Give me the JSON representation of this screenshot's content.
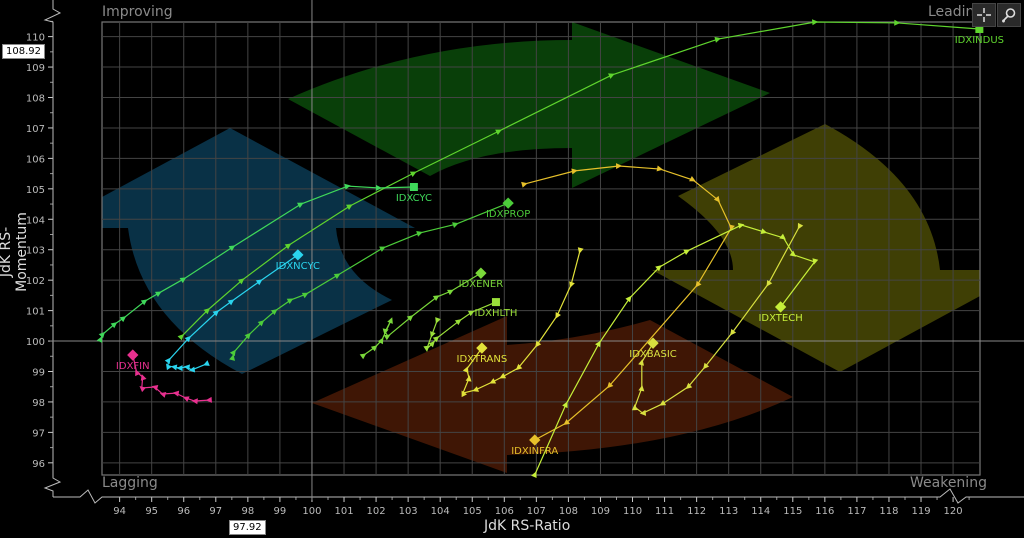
{
  "toolbar": {
    "crosshair_icon": "crosshair-icon",
    "zoom_icon": "zoom-in-icon"
  },
  "quadrants": {
    "top_left": "Improving",
    "top_right": "Leading",
    "bottom_left": "Lagging",
    "bottom_right": "Weakening"
  },
  "cursor_readout": {
    "y_value": "108.92",
    "x_value": "97.92"
  },
  "chart_data": {
    "type": "scatter",
    "subtype": "relative-rotation-graph",
    "xlabel": "JdK RS-Ratio",
    "ylabel": "JdK RS-Momentum",
    "xlim": [
      93.45,
      120.84
    ],
    "ylim": [
      95.6,
      110.48
    ],
    "x_ticks": [
      94,
      95,
      96,
      97,
      98,
      99,
      100,
      101,
      102,
      103,
      104,
      105,
      106,
      107,
      108,
      109,
      110,
      111,
      112,
      113,
      114,
      115,
      116,
      117,
      118,
      119,
      120
    ],
    "y_ticks": [
      96,
      97,
      98,
      99,
      100,
      101,
      102,
      103,
      104,
      105,
      106,
      107,
      108,
      109,
      110
    ],
    "grid": true,
    "center": [
      100,
      100
    ],
    "quadrant_colors": {
      "improving": "#0a3a52",
      "leading": "#0b4a0b",
      "weakening": "#4a4a06",
      "lagging": "#4a1a06"
    },
    "series": [
      {
        "name": "IDXINDUS",
        "color": "#5fd42e",
        "head": "square",
        "points": [
          [
            95.94,
            100.16
          ],
          [
            96.75,
            101.02
          ],
          [
            97.82,
            102.0
          ],
          [
            99.28,
            103.15
          ],
          [
            101.19,
            104.44
          ],
          [
            103.18,
            105.52
          ],
          [
            105.84,
            106.9
          ],
          [
            109.36,
            108.74
          ],
          [
            112.67,
            109.92
          ],
          [
            115.7,
            110.48
          ],
          [
            118.26,
            110.45
          ],
          [
            120.82,
            110.25
          ]
        ]
      },
      {
        "name": "IDXCYC",
        "color": "#3fd85a",
        "head": "square",
        "points": [
          [
            93.41,
            100.07
          ],
          [
            93.48,
            100.23
          ],
          [
            93.85,
            100.56
          ],
          [
            94.13,
            100.76
          ],
          [
            94.79,
            101.31
          ],
          [
            95.23,
            101.58
          ],
          [
            96.0,
            102.04
          ],
          [
            97.53,
            103.09
          ],
          [
            99.66,
            104.5
          ],
          [
            101.12,
            105.09
          ],
          [
            102.09,
            105.03
          ],
          [
            103.18,
            105.06
          ]
        ]
      },
      {
        "name": "IDXPROP",
        "color": "#4ccc3a",
        "head": "diamond",
        "points": [
          [
            97.53,
            99.47
          ],
          [
            97.57,
            99.64
          ],
          [
            98.03,
            100.2
          ],
          [
            98.44,
            100.62
          ],
          [
            98.85,
            100.99
          ],
          [
            99.34,
            101.35
          ],
          [
            99.81,
            101.54
          ],
          [
            100.81,
            102.17
          ],
          [
            102.22,
            103.06
          ],
          [
            103.37,
            103.55
          ],
          [
            104.49,
            103.84
          ],
          [
            106.12,
            104.53
          ]
        ]
      },
      {
        "name": "IDXNCYC",
        "color": "#2ad4ee",
        "head": "diamond",
        "points": [
          [
            96.69,
            99.24
          ],
          [
            96.25,
            99.05
          ],
          [
            96.09,
            99.15
          ],
          [
            95.87,
            99.11
          ],
          [
            95.69,
            99.15
          ],
          [
            95.5,
            99.18
          ],
          [
            95.54,
            99.38
          ],
          [
            96.16,
            100.1
          ],
          [
            97.03,
            100.95
          ],
          [
            97.5,
            101.31
          ],
          [
            98.38,
            101.97
          ],
          [
            99.56,
            102.83
          ]
        ]
      },
      {
        "name": "IDXFIN",
        "color": "#e8308f",
        "head": "diamond",
        "points": [
          [
            96.78,
            98.06
          ],
          [
            96.34,
            98.03
          ],
          [
            96.06,
            98.13
          ],
          [
            95.75,
            98.29
          ],
          [
            95.34,
            98.26
          ],
          [
            95.09,
            98.49
          ],
          [
            94.69,
            98.46
          ],
          [
            94.72,
            98.82
          ],
          [
            94.53,
            98.98
          ],
          [
            94.41,
            99.54
          ]
        ]
      },
      {
        "name": "IDXENER",
        "color": "#7ad83a",
        "head": "diamond",
        "points": [
          [
            101.62,
            99.54
          ],
          [
            101.97,
            99.8
          ],
          [
            102.18,
            100.03
          ],
          [
            102.47,
            100.69
          ],
          [
            102.28,
            100.3
          ],
          [
            102.37,
            100.16
          ],
          [
            103.09,
            100.79
          ],
          [
            103.9,
            101.45
          ],
          [
            104.34,
            101.64
          ],
          [
            105.27,
            102.23
          ]
        ]
      },
      {
        "name": "IDXHLTH",
        "color": "#9be03a",
        "head": "square",
        "points": [
          [
            103.9,
            100.66
          ],
          [
            103.74,
            100.2
          ],
          [
            103.58,
            99.74
          ],
          [
            103.77,
            99.93
          ],
          [
            103.9,
            100.1
          ],
          [
            104.59,
            100.66
          ],
          [
            104.99,
            100.95
          ],
          [
            105.74,
            101.28
          ]
        ]
      },
      {
        "name": "IDXTRANS",
        "color": "#e2e23a",
        "head": "diamond",
        "points": [
          [
            108.36,
            102.96
          ],
          [
            108.08,
            101.84
          ],
          [
            107.64,
            100.82
          ],
          [
            107.02,
            99.87
          ],
          [
            106.43,
            99.11
          ],
          [
            105.93,
            98.82
          ],
          [
            105.62,
            98.65
          ],
          [
            105.09,
            98.39
          ],
          [
            104.71,
            98.29
          ],
          [
            104.9,
            98.78
          ],
          [
            104.83,
            99.08
          ],
          [
            105.3,
            99.77
          ]
        ]
      },
      {
        "name": "IDXINFRA",
        "color": "#e6c02a",
        "head": "diamond",
        "points": [
          [
            106.64,
            105.16
          ],
          [
            108.2,
            105.59
          ],
          [
            109.58,
            105.75
          ],
          [
            110.86,
            105.65
          ],
          [
            111.89,
            105.29
          ],
          [
            112.67,
            104.63
          ],
          [
            113.08,
            103.71
          ],
          [
            112.02,
            101.84
          ],
          [
            109.27,
            98.52
          ],
          [
            107.92,
            97.3
          ],
          [
            106.95,
            96.75
          ]
        ]
      },
      {
        "name": "IDXBASIC",
        "color": "#d8e040",
        "head": "diamond",
        "points": [
          [
            115.2,
            103.75
          ],
          [
            114.23,
            101.87
          ],
          [
            113.1,
            100.26
          ],
          [
            112.26,
            99.15
          ],
          [
            111.73,
            98.49
          ],
          [
            110.92,
            97.93
          ],
          [
            110.32,
            97.63
          ],
          [
            110.07,
            97.83
          ],
          [
            110.29,
            98.46
          ],
          [
            110.29,
            99.31
          ],
          [
            110.64,
            99.93
          ]
        ]
      },
      {
        "name": "IDXTECH",
        "color": "#c6ef3a",
        "head": "diamond",
        "points": [
          [
            106.96,
            95.63
          ],
          [
            107.93,
            97.93
          ],
          [
            108.96,
            99.93
          ],
          [
            109.91,
            101.41
          ],
          [
            110.84,
            102.43
          ],
          [
            111.71,
            102.96
          ],
          [
            113.4,
            103.81
          ],
          [
            114.11,
            103.58
          ],
          [
            114.71,
            103.39
          ],
          [
            115.03,
            102.83
          ],
          [
            115.68,
            102.6
          ],
          [
            114.62,
            101.12
          ]
        ]
      }
    ]
  }
}
